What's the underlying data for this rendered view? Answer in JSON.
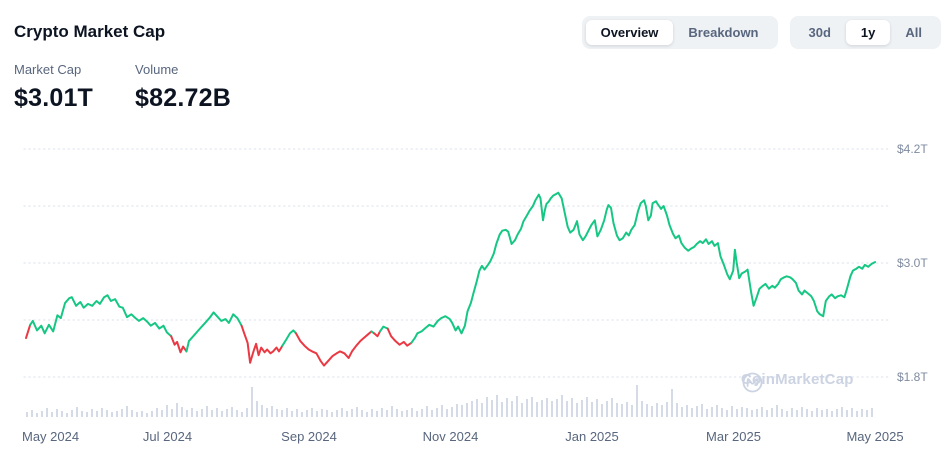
{
  "header": {
    "title": "Crypto Market Cap"
  },
  "stats": [
    {
      "label": "Market Cap",
      "value": "$3.01T"
    },
    {
      "label": "Volume",
      "value": "$82.72B"
    }
  ],
  "view_tabs": [
    {
      "label": "Overview",
      "selected": true
    },
    {
      "label": "Breakdown",
      "selected": false
    }
  ],
  "range_tabs": [
    {
      "label": "30d",
      "selected": false
    },
    {
      "label": "1y",
      "selected": true
    },
    {
      "label": "All",
      "selected": false
    }
  ],
  "watermark": {
    "text": "CoinMarketCap"
  },
  "colors": {
    "up": "#16c784",
    "down": "#ea3943",
    "volume_bar": "#d4dae6",
    "grid": "#e2e6ee",
    "title_text": "#0d1421",
    "muted_text": "#58667e",
    "y_axis_text": "#7f8ba0",
    "pill_bg": "#eff2f5",
    "pill_active_bg": "#ffffff",
    "watermark_text": "#ccd3e2",
    "background": "#ffffff"
  },
  "chart_data": {
    "type": "line",
    "title": "Total crypto market cap over 1 year with volume bars",
    "unit": "USD trillions",
    "x_axis": {
      "range": [
        "May 2024",
        "May 2025"
      ],
      "labels": [
        "May 2024",
        "Jul 2024",
        "Sep 2024",
        "Nov 2024",
        "Jan 2025",
        "Mar 2025",
        "May 2025"
      ],
      "label_month_offsets": [
        0,
        2,
        4,
        6,
        8,
        10,
        12
      ]
    },
    "y_axis": {
      "ticks": [
        {
          "v": 4.2,
          "label": "$4.2T"
        },
        {
          "v": 3.0,
          "label": "$3.0T"
        },
        {
          "v": 1.8,
          "label": "$1.8T"
        }
      ],
      "grid_values": [
        4.2,
        3.6,
        3.0,
        2.4,
        1.8
      ],
      "grid_style": "dotted",
      "side": "right"
    },
    "legend": "none",
    "points": [
      [
        0.0,
        2.21
      ],
      [
        0.005,
        2.35
      ],
      [
        0.008,
        2.39
      ],
      [
        0.013,
        2.29
      ],
      [
        0.018,
        2.34
      ],
      [
        0.022,
        2.26
      ],
      [
        0.027,
        2.35
      ],
      [
        0.032,
        2.28
      ],
      [
        0.037,
        2.45
      ],
      [
        0.041,
        2.42
      ],
      [
        0.046,
        2.58
      ],
      [
        0.051,
        2.63
      ],
      [
        0.054,
        2.64
      ],
      [
        0.059,
        2.55
      ],
      [
        0.064,
        2.59
      ],
      [
        0.068,
        2.53
      ],
      [
        0.073,
        2.57
      ],
      [
        0.078,
        2.55
      ],
      [
        0.083,
        2.6
      ],
      [
        0.087,
        2.57
      ],
      [
        0.092,
        2.64
      ],
      [
        0.096,
        2.66
      ],
      [
        0.1,
        2.6
      ],
      [
        0.105,
        2.62
      ],
      [
        0.11,
        2.54
      ],
      [
        0.114,
        2.53
      ],
      [
        0.119,
        2.43
      ],
      [
        0.124,
        2.46
      ],
      [
        0.129,
        2.42
      ],
      [
        0.133,
        2.39
      ],
      [
        0.138,
        2.42
      ],
      [
        0.143,
        2.38
      ],
      [
        0.147,
        2.34
      ],
      [
        0.152,
        2.37
      ],
      [
        0.157,
        2.31
      ],
      [
        0.162,
        2.34
      ],
      [
        0.166,
        2.27
      ],
      [
        0.171,
        2.23
      ],
      [
        0.175,
        2.14
      ],
      [
        0.178,
        2.17
      ],
      [
        0.182,
        2.06
      ],
      [
        0.185,
        2.12
      ],
      [
        0.189,
        2.07
      ],
      [
        0.192,
        2.18
      ],
      [
        0.197,
        2.23
      ],
      [
        0.202,
        2.28
      ],
      [
        0.206,
        2.32
      ],
      [
        0.211,
        2.37
      ],
      [
        0.216,
        2.42
      ],
      [
        0.221,
        2.48
      ],
      [
        0.225,
        2.44
      ],
      [
        0.23,
        2.39
      ],
      [
        0.235,
        2.41
      ],
      [
        0.239,
        2.37
      ],
      [
        0.244,
        2.46
      ],
      [
        0.249,
        2.42
      ],
      [
        0.254,
        2.34
      ],
      [
        0.257,
        2.26
      ],
      [
        0.261,
        2.16
      ],
      [
        0.264,
        1.95
      ],
      [
        0.268,
        2.07
      ],
      [
        0.271,
        2.15
      ],
      [
        0.274,
        2.03
      ],
      [
        0.277,
        2.11
      ],
      [
        0.281,
        2.06
      ],
      [
        0.284,
        2.09
      ],
      [
        0.288,
        2.05
      ],
      [
        0.291,
        2.07
      ],
      [
        0.295,
        2.11
      ],
      [
        0.298,
        2.07
      ],
      [
        0.302,
        2.13
      ],
      [
        0.307,
        2.2
      ],
      [
        0.311,
        2.26
      ],
      [
        0.315,
        2.29
      ],
      [
        0.318,
        2.26
      ],
      [
        0.323,
        2.18
      ],
      [
        0.328,
        2.13
      ],
      [
        0.333,
        2.09
      ],
      [
        0.337,
        2.07
      ],
      [
        0.342,
        2.05
      ],
      [
        0.347,
        1.97
      ],
      [
        0.351,
        1.92
      ],
      [
        0.356,
        1.97
      ],
      [
        0.361,
        2.02
      ],
      [
        0.366,
        2.05
      ],
      [
        0.37,
        2.07
      ],
      [
        0.375,
        2.05
      ],
      [
        0.38,
        2.0
      ],
      [
        0.384,
        2.07
      ],
      [
        0.389,
        2.13
      ],
      [
        0.394,
        2.18
      ],
      [
        0.399,
        2.22
      ],
      [
        0.403,
        2.25
      ],
      [
        0.407,
        2.28
      ],
      [
        0.41,
        2.26
      ],
      [
        0.414,
        2.23
      ],
      [
        0.417,
        2.28
      ],
      [
        0.421,
        2.33
      ],
      [
        0.426,
        2.31
      ],
      [
        0.43,
        2.23
      ],
      [
        0.435,
        2.18
      ],
      [
        0.44,
        2.14
      ],
      [
        0.445,
        2.17
      ],
      [
        0.449,
        2.13
      ],
      [
        0.454,
        2.16
      ],
      [
        0.458,
        2.21
      ],
      [
        0.461,
        2.26
      ],
      [
        0.466,
        2.28
      ],
      [
        0.471,
        2.32
      ],
      [
        0.475,
        2.35
      ],
      [
        0.48,
        2.33
      ],
      [
        0.485,
        2.39
      ],
      [
        0.489,
        2.42
      ],
      [
        0.494,
        2.44
      ],
      [
        0.499,
        2.41
      ],
      [
        0.502,
        2.37
      ],
      [
        0.506,
        2.29
      ],
      [
        0.509,
        2.33
      ],
      [
        0.513,
        2.26
      ],
      [
        0.517,
        2.34
      ],
      [
        0.52,
        2.49
      ],
      [
        0.524,
        2.58
      ],
      [
        0.527,
        2.68
      ],
      [
        0.531,
        2.81
      ],
      [
        0.534,
        2.92
      ],
      [
        0.537,
        2.97
      ],
      [
        0.54,
        2.93
      ],
      [
        0.544,
        2.98
      ],
      [
        0.547,
        3.02
      ],
      [
        0.551,
        3.1
      ],
      [
        0.554,
        3.2
      ],
      [
        0.558,
        3.3
      ],
      [
        0.561,
        3.34
      ],
      [
        0.565,
        3.35
      ],
      [
        0.568,
        3.33
      ],
      [
        0.572,
        3.2
      ],
      [
        0.576,
        3.24
      ],
      [
        0.579,
        3.3
      ],
      [
        0.583,
        3.36
      ],
      [
        0.586,
        3.44
      ],
      [
        0.59,
        3.5
      ],
      [
        0.593,
        3.55
      ],
      [
        0.597,
        3.6
      ],
      [
        0.6,
        3.66
      ],
      [
        0.604,
        3.72
      ],
      [
        0.606,
        3.68
      ],
      [
        0.609,
        3.45
      ],
      [
        0.611,
        3.55
      ],
      [
        0.613,
        3.62
      ],
      [
        0.616,
        3.65
      ],
      [
        0.618,
        3.68
      ],
      [
        0.621,
        3.71
      ],
      [
        0.625,
        3.73
      ],
      [
        0.627,
        3.74
      ],
      [
        0.631,
        3.68
      ],
      [
        0.634,
        3.55
      ],
      [
        0.638,
        3.38
      ],
      [
        0.641,
        3.32
      ],
      [
        0.645,
        3.35
      ],
      [
        0.649,
        3.44
      ],
      [
        0.652,
        3.3
      ],
      [
        0.656,
        3.24
      ],
      [
        0.659,
        3.28
      ],
      [
        0.663,
        3.35
      ],
      [
        0.666,
        3.4
      ],
      [
        0.67,
        3.45
      ],
      [
        0.673,
        3.28
      ],
      [
        0.677,
        3.35
      ],
      [
        0.681,
        3.45
      ],
      [
        0.684,
        3.56
      ],
      [
        0.686,
        3.61
      ],
      [
        0.689,
        3.58
      ],
      [
        0.692,
        3.42
      ],
      [
        0.696,
        3.29
      ],
      [
        0.699,
        3.24
      ],
      [
        0.703,
        3.26
      ],
      [
        0.707,
        3.32
      ],
      [
        0.71,
        3.29
      ],
      [
        0.713,
        3.35
      ],
      [
        0.717,
        3.4
      ],
      [
        0.721,
        3.55
      ],
      [
        0.724,
        3.63
      ],
      [
        0.728,
        3.66
      ],
      [
        0.73,
        3.6
      ],
      [
        0.733,
        3.45
      ],
      [
        0.736,
        3.5
      ],
      [
        0.738,
        3.63
      ],
      [
        0.742,
        3.65
      ],
      [
        0.744,
        3.62
      ],
      [
        0.748,
        3.57
      ],
      [
        0.751,
        3.6
      ],
      [
        0.755,
        3.5
      ],
      [
        0.758,
        3.4
      ],
      [
        0.762,
        3.31
      ],
      [
        0.765,
        3.26
      ],
      [
        0.769,
        3.29
      ],
      [
        0.772,
        3.21
      ],
      [
        0.776,
        3.16
      ],
      [
        0.78,
        3.13
      ],
      [
        0.783,
        3.15
      ],
      [
        0.787,
        3.17
      ],
      [
        0.79,
        3.2
      ],
      [
        0.794,
        3.23
      ],
      [
        0.797,
        3.21
      ],
      [
        0.801,
        3.25
      ],
      [
        0.804,
        3.2
      ],
      [
        0.808,
        3.23
      ],
      [
        0.811,
        3.18
      ],
      [
        0.815,
        3.21
      ],
      [
        0.818,
        3.07
      ],
      [
        0.822,
        2.98
      ],
      [
        0.826,
        2.88
      ],
      [
        0.829,
        2.83
      ],
      [
        0.833,
        2.92
      ],
      [
        0.835,
        3.14
      ],
      [
        0.837,
        3.01
      ],
      [
        0.84,
        2.84
      ],
      [
        0.843,
        2.89
      ],
      [
        0.847,
        2.91
      ],
      [
        0.85,
        2.93
      ],
      [
        0.854,
        2.7
      ],
      [
        0.857,
        2.55
      ],
      [
        0.861,
        2.65
      ],
      [
        0.864,
        2.73
      ],
      [
        0.868,
        2.76
      ],
      [
        0.871,
        2.78
      ],
      [
        0.875,
        2.73
      ],
      [
        0.879,
        2.76
      ],
      [
        0.882,
        2.74
      ],
      [
        0.886,
        2.78
      ],
      [
        0.889,
        2.83
      ],
      [
        0.893,
        2.85
      ],
      [
        0.896,
        2.86
      ],
      [
        0.9,
        2.85
      ],
      [
        0.903,
        2.83
      ],
      [
        0.907,
        2.79
      ],
      [
        0.91,
        2.71
      ],
      [
        0.914,
        2.67
      ],
      [
        0.917,
        2.71
      ],
      [
        0.921,
        2.68
      ],
      [
        0.925,
        2.65
      ],
      [
        0.928,
        2.6
      ],
      [
        0.932,
        2.49
      ],
      [
        0.935,
        2.46
      ],
      [
        0.939,
        2.44
      ],
      [
        0.942,
        2.6
      ],
      [
        0.946,
        2.65
      ],
      [
        0.949,
        2.67
      ],
      [
        0.953,
        2.63
      ],
      [
        0.956,
        2.65
      ],
      [
        0.96,
        2.66
      ],
      [
        0.964,
        2.64
      ],
      [
        0.967,
        2.73
      ],
      [
        0.971,
        2.86
      ],
      [
        0.974,
        2.92
      ],
      [
        0.978,
        2.94
      ],
      [
        0.981,
        2.96
      ],
      [
        0.985,
        2.94
      ],
      [
        0.988,
        2.98
      ],
      [
        0.992,
        2.96
      ],
      [
        0.996,
        2.99
      ],
      [
        1.0,
        3.01
      ]
    ],
    "trend_runs": [
      [
        0.0,
        0.005,
        "down"
      ],
      [
        0.005,
        0.171,
        "up"
      ],
      [
        0.171,
        0.189,
        "down"
      ],
      [
        0.189,
        0.254,
        "up"
      ],
      [
        0.254,
        0.302,
        "down"
      ],
      [
        0.302,
        0.318,
        "up"
      ],
      [
        0.318,
        0.407,
        "down"
      ],
      [
        0.407,
        0.41,
        "up"
      ],
      [
        0.41,
        0.417,
        "down"
      ],
      [
        0.417,
        0.426,
        "up"
      ],
      [
        0.426,
        0.454,
        "down"
      ],
      [
        0.454,
        1.001,
        "up"
      ]
    ],
    "end_value_trillions": 3.01,
    "volume": {
      "note": "relative daily volume bars, no volume axis shown",
      "relative_heights": [
        5,
        7,
        4,
        6,
        9,
        5,
        8,
        6,
        4,
        7,
        10,
        6,
        5,
        8,
        6,
        9,
        7,
        5,
        6,
        8,
        11,
        7,
        5,
        6,
        4,
        6,
        9,
        7,
        12,
        8,
        14,
        10,
        7,
        9,
        6,
        8,
        11,
        7,
        9,
        6,
        8,
        10,
        7,
        5,
        9,
        30,
        16,
        12,
        9,
        11,
        8,
        7,
        9,
        6,
        8,
        5,
        7,
        9,
        6,
        8,
        7,
        5,
        7,
        9,
        6,
        8,
        10,
        7,
        5,
        8,
        6,
        9,
        7,
        11,
        8,
        6,
        7,
        9,
        6,
        8,
        11,
        7,
        9,
        12,
        8,
        10,
        13,
        12,
        14,
        16,
        18,
        14,
        20,
        17,
        22,
        15,
        19,
        16,
        21,
        14,
        18,
        20,
        15,
        17,
        19,
        16,
        18,
        22,
        16,
        19,
        14,
        17,
        20,
        15,
        18,
        13,
        16,
        19,
        14,
        13,
        15,
        12,
        32,
        16,
        13,
        11,
        14,
        12,
        15,
        28,
        14,
        10,
        12,
        9,
        11,
        13,
        8,
        10,
        12,
        9,
        7,
        11,
        8,
        10,
        9,
        7,
        8,
        10,
        7,
        9,
        12,
        8,
        6,
        9,
        7,
        10,
        8,
        6,
        9,
        7,
        8,
        6,
        8,
        10,
        7,
        9,
        6,
        8,
        7,
        9
      ]
    }
  }
}
